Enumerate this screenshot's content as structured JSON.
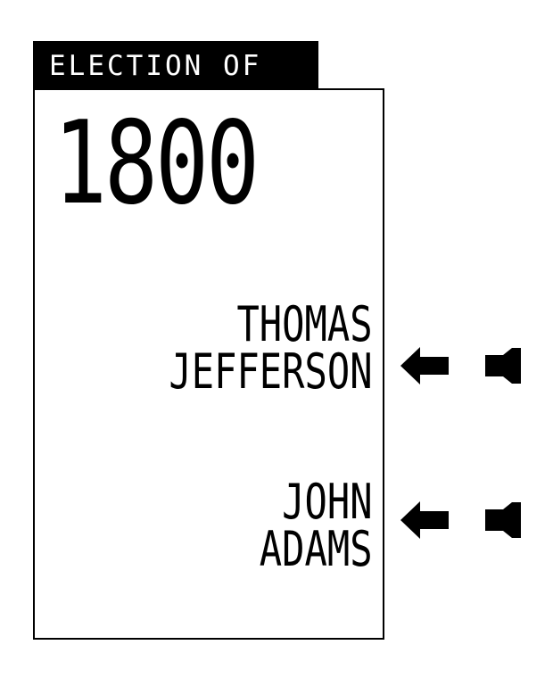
{
  "header": {
    "label": "ELECTION OF",
    "year": "1800"
  },
  "candidates": [
    {
      "first_name": "THOMAS",
      "last_name": "JEFFERSON"
    },
    {
      "first_name": "JOHN",
      "last_name": "ADAMS"
    }
  ],
  "colors": {
    "ink": "#000000",
    "paper": "#ffffff"
  },
  "icons": {
    "pointer": "arrow-left-icon",
    "vote_slot": "punch-slot-icon"
  }
}
